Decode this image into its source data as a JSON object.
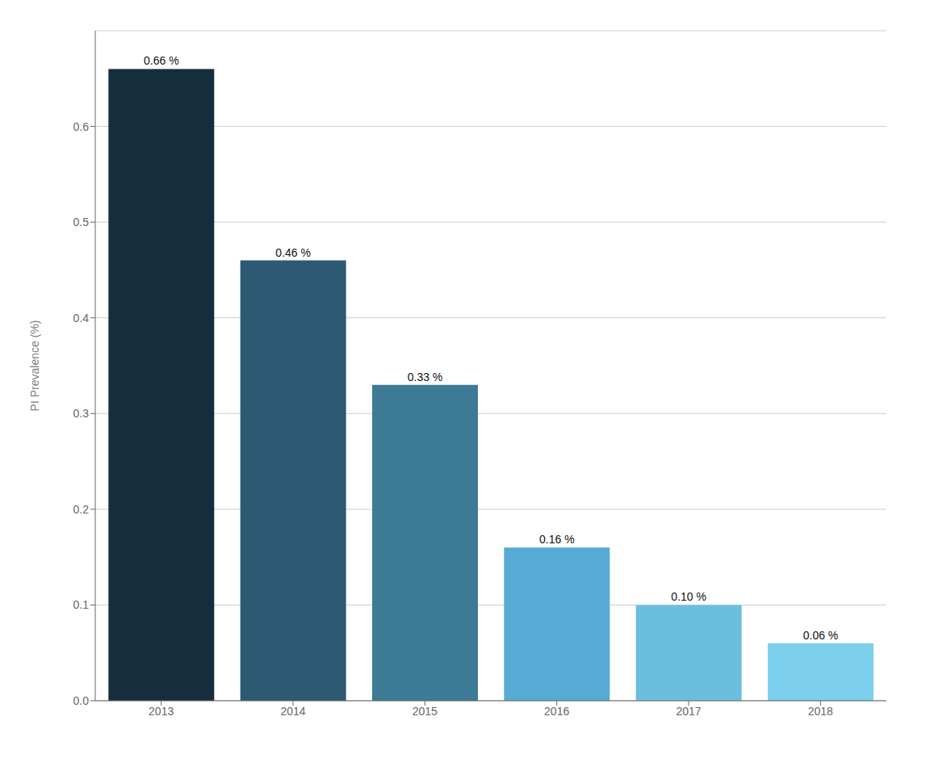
{
  "chart_data": {
    "type": "bar",
    "categories": [
      "2013",
      "2014",
      "2015",
      "2016",
      "2017",
      "2018"
    ],
    "values": [
      0.66,
      0.46,
      0.33,
      0.16,
      0.1,
      0.06
    ],
    "value_labels": [
      "0.66 %",
      "0.46 %",
      "0.33 %",
      "0.16 %",
      "0.10 %",
      "0.06 %"
    ],
    "colors": [
      "#162d3e",
      "#2e5972",
      "#3d7a96",
      "#57aad4",
      "#6bbfde",
      "#7dcfee"
    ],
    "ylabel": "PI Prevalence (%)",
    "ylim": [
      0,
      0.7
    ],
    "yticks": [
      {
        "value": 0,
        "label": "0.0"
      },
      0.1,
      0.2,
      0.3,
      0.4,
      0.5,
      0.6
    ],
    "grid": true,
    "data_labels": true
  }
}
